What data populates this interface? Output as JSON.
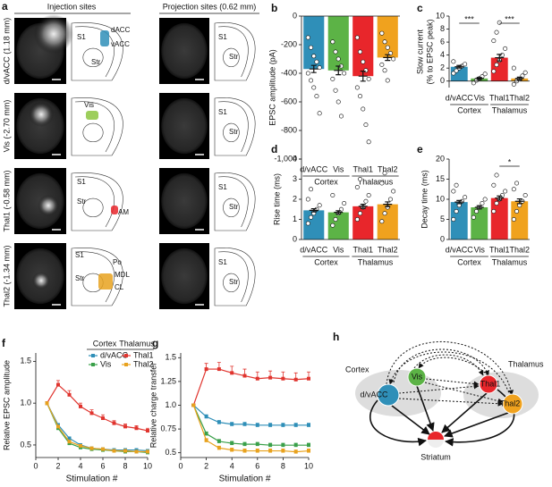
{
  "panel_a": {
    "label": "a",
    "injection_header": "Injection sites",
    "projection_header": "Projection sites (0.62 mm)",
    "rows": [
      {
        "label": "d/vACC (1.18 mm)",
        "atlas": [
          "S1",
          "dACC",
          "vACC",
          "Str"
        ],
        "projection_atlas": [
          "S1",
          "Str"
        ]
      },
      {
        "label": "Vis (-2.70 mm)",
        "atlas": [
          "Vis"
        ],
        "projection_atlas": [
          "S1",
          "Str"
        ]
      },
      {
        "label": "Thal1 (-0.58 mm)",
        "atlas": [
          "S1",
          "Str",
          "AM"
        ],
        "projection_atlas": [
          "S1",
          "Str"
        ]
      },
      {
        "label": "Thal2 (-1.34 mm)",
        "atlas": [
          "S1",
          "Po",
          "MDL",
          "CL",
          "Str"
        ],
        "projection_atlas": [
          "S1",
          "Str"
        ]
      }
    ]
  },
  "panel_h": {
    "label": "h",
    "regions": [
      "Cortex",
      "Thalamus"
    ],
    "nodes": [
      "d/vACC",
      "Vis",
      "Thal1",
      "Thal2",
      "Striatum"
    ]
  },
  "chart_data": [
    {
      "type": "bar",
      "panel": "b",
      "ylabel": "EPSC amplitude (pA)",
      "categories": [
        "d/vACC",
        "Vis",
        "Thal1",
        "Thal2"
      ],
      "colors": [
        "#2f8fb8",
        "#5cb346",
        "#e8262b",
        "#f0a21e"
      ],
      "values": [
        -370,
        -380,
        -420,
        -290
      ],
      "errors": [
        25,
        30,
        35,
        20
      ],
      "points": [
        [
          -150,
          -220,
          -280,
          -320,
          -360,
          -400,
          -450,
          -500,
          -560,
          -680
        ],
        [
          -180,
          -250,
          -300,
          -350,
          -400,
          -440,
          -520,
          -600,
          -700
        ],
        [
          -150,
          -250,
          -320,
          -380,
          -440,
          -500,
          -560,
          -650,
          -760,
          -880
        ],
        [
          -120,
          -180,
          -220,
          -260,
          -300,
          -340,
          -380,
          -450
        ]
      ],
      "groups": [
        {
          "label": "Cortex",
          "categories": [
            "d/vACC",
            "Vis"
          ]
        },
        {
          "label": "Thalamus",
          "categories": [
            "Thal1",
            "Thal2"
          ]
        }
      ],
      "ylim": [
        -1000,
        0
      ],
      "yticks": [
        0,
        -200,
        -400,
        -600,
        -800,
        {
          "value": -1000,
          "label": "-1,000"
        }
      ]
    },
    {
      "type": "bar",
      "panel": "c",
      "ylabel": [
        "Slow current",
        "(% to EPSC peak)"
      ],
      "categories": [
        "d/vACC",
        "Vis",
        "Thal1",
        "Thal2"
      ],
      "colors": [
        "#2f8fb8",
        "#5cb346",
        "#e8262b",
        "#f0a21e"
      ],
      "values": [
        2.2,
        0.4,
        3.6,
        0.4
      ],
      "errors": [
        0.2,
        0.15,
        0.5,
        0.2
      ],
      "points": [
        [
          1.2,
          1.6,
          2.0,
          2.3,
          2.6,
          3.0
        ],
        [
          -0.3,
          0.1,
          0.4,
          0.7,
          1.1
        ],
        [
          1.5,
          2.5,
          3.2,
          4.0,
          5.0,
          6.2,
          7.5,
          9.0
        ],
        [
          -0.5,
          0,
          0.3,
          0.8,
          1.3,
          2.0
        ]
      ],
      "groups": [
        {
          "label": "Cortex",
          "categories": [
            "d/vACC",
            "Vis"
          ]
        },
        {
          "label": "Thalamus",
          "categories": [
            "Thal1",
            "Thal2"
          ]
        }
      ],
      "significance": [
        {
          "label": "***",
          "categories": [
            "d/vACC",
            "Vis"
          ]
        },
        {
          "label": "***",
          "categories": [
            "Thal1",
            "Thal2"
          ]
        }
      ],
      "ylim": [
        -1,
        10
      ],
      "yticks": [
        0,
        2,
        4,
        6,
        8,
        10
      ]
    },
    {
      "type": "bar",
      "panel": "d",
      "ylabel": "Rise time (ms)",
      "categories": [
        "d/vACC",
        "Vis",
        "Thal1",
        "Thal2"
      ],
      "colors": [
        "#2f8fb8",
        "#5cb346",
        "#e8262b",
        "#f0a21e"
      ],
      "values": [
        1.45,
        1.35,
        1.65,
        1.75
      ],
      "errors": [
        0.08,
        0.08,
        0.1,
        0.12
      ],
      "points": [
        [
          0.8,
          1.1,
          1.3,
          1.5,
          1.7,
          2.0,
          2.5
        ],
        [
          0.7,
          1.0,
          1.3,
          1.5,
          1.8,
          2.2
        ],
        [
          1.0,
          1.3,
          1.6,
          1.9,
          2.2,
          2.6,
          3.0
        ],
        [
          0.9,
          1.3,
          1.6,
          2.0,
          2.4,
          2.8,
          3.3
        ]
      ],
      "groups": [
        {
          "label": "Cortex",
          "categories": [
            "d/vACC",
            "Vis"
          ]
        },
        {
          "label": "Thalamus",
          "categories": [
            "Thal1",
            "Thal2"
          ]
        }
      ],
      "ylim": [
        0,
        4
      ],
      "yticks": [
        0,
        1,
        2,
        3,
        4
      ]
    },
    {
      "type": "bar",
      "panel": "e",
      "ylabel": "Decay time (ms)",
      "categories": [
        "d/vACC",
        "Vis",
        "Thal1",
        "Thal2"
      ],
      "colors": [
        "#2f8fb8",
        "#5cb346",
        "#e8262b",
        "#f0a21e"
      ],
      "values": [
        9.3,
        8.0,
        10.3,
        9.5
      ],
      "errors": [
        0.4,
        0.4,
        0.5,
        0.6
      ],
      "points": [
        [
          5,
          7,
          8.5,
          9.5,
          10.5,
          12,
          13.5
        ],
        [
          5.5,
          7,
          8,
          9,
          10
        ],
        [
          7,
          9,
          10,
          11,
          12,
          13.5,
          16
        ],
        [
          5,
          7,
          8.5,
          9.5,
          11,
          12.5,
          14
        ]
      ],
      "groups": [
        {
          "label": "Cortex",
          "categories": [
            "d/vACC",
            "Vis"
          ]
        },
        {
          "label": "Thalamus",
          "categories": [
            "Thal1",
            "Thal2"
          ]
        }
      ],
      "significance": [
        {
          "label": "*",
          "categories": [
            "Thal1",
            "Thal2"
          ]
        }
      ],
      "ylim": [
        0,
        20
      ],
      "yticks": [
        0,
        5,
        10,
        15,
        20
      ]
    },
    {
      "type": "line",
      "panel": "f",
      "ylabel": "Relative EPSC amplitude",
      "xlabel": "Stimulation #",
      "x": [
        1,
        2,
        3,
        4,
        5,
        6,
        7,
        8,
        9,
        10
      ],
      "legend_titles": [
        "Cortex",
        "Thalamus"
      ],
      "series": [
        {
          "name": "d/vACC",
          "color": "#2f8fb8",
          "values": [
            1.0,
            0.74,
            0.58,
            0.5,
            0.46,
            0.45,
            0.44,
            0.44,
            0.44,
            0.43
          ],
          "errors": [
            0,
            0.015,
            0.015,
            0.015,
            0.015,
            0.015,
            0.015,
            0.015,
            0.015,
            0.015
          ]
        },
        {
          "name": "Vis",
          "color": "#3aa04a",
          "values": [
            1.0,
            0.7,
            0.52,
            0.47,
            0.45,
            0.44,
            0.43,
            0.42,
            0.42,
            0.41
          ],
          "errors": [
            0,
            0.015,
            0.015,
            0.015,
            0.015,
            0.015,
            0.015,
            0.015,
            0.015,
            0.015
          ]
        },
        {
          "name": "Thal1",
          "color": "#e0342e",
          "values": [
            1.0,
            1.22,
            1.1,
            0.96,
            0.88,
            0.82,
            0.76,
            0.72,
            0.7,
            0.67
          ],
          "errors": [
            0,
            0.05,
            0.05,
            0.04,
            0.04,
            0.04,
            0.03,
            0.03,
            0.03,
            0.03
          ]
        },
        {
          "name": "Thal2",
          "color": "#e8a21e",
          "values": [
            1.0,
            0.72,
            0.54,
            0.49,
            0.46,
            0.45,
            0.43,
            0.43,
            0.42,
            0.42
          ],
          "errors": [
            0,
            0.015,
            0.015,
            0.015,
            0.015,
            0.015,
            0.015,
            0.015,
            0.015,
            0.015
          ]
        }
      ],
      "xlim": [
        0,
        10
      ],
      "xticks": [
        0,
        2,
        4,
        6,
        8,
        10
      ],
      "ylim": [
        0.35,
        1.6
      ],
      "yticks": [
        {
          "value": 0.5,
          "label": "0.5"
        },
        {
          "value": 1,
          "label": "1.0"
        },
        {
          "value": 1.5,
          "label": "1.5"
        }
      ]
    },
    {
      "type": "line",
      "panel": "g",
      "ylabel": "Relative charge transfer",
      "xlabel": "Stimulation #",
      "x": [
        1,
        2,
        3,
        4,
        5,
        6,
        7,
        8,
        9,
        10
      ],
      "series": [
        {
          "color": "#2f8fb8",
          "values": [
            1.0,
            0.88,
            0.82,
            0.8,
            0.8,
            0.79,
            0.79,
            0.79,
            0.79,
            0.79
          ],
          "errors": [
            0,
            0.02,
            0.02,
            0.02,
            0.02,
            0.02,
            0.02,
            0.02,
            0.02,
            0.02
          ]
        },
        {
          "color": "#3aa04a",
          "values": [
            1.0,
            0.7,
            0.62,
            0.6,
            0.59,
            0.59,
            0.58,
            0.58,
            0.58,
            0.58
          ],
          "errors": [
            0,
            0.02,
            0.02,
            0.02,
            0.02,
            0.02,
            0.02,
            0.02,
            0.02,
            0.02
          ]
        },
        {
          "color": "#e0342e",
          "values": [
            1.0,
            1.38,
            1.38,
            1.34,
            1.31,
            1.28,
            1.29,
            1.28,
            1.27,
            1.28
          ],
          "errors": [
            0,
            0.06,
            0.07,
            0.07,
            0.07,
            0.07,
            0.07,
            0.07,
            0.07,
            0.07
          ]
        },
        {
          "color": "#e8a21e",
          "values": [
            1.0,
            0.63,
            0.55,
            0.53,
            0.52,
            0.52,
            0.52,
            0.52,
            0.51,
            0.52
          ],
          "errors": [
            0,
            0.02,
            0.02,
            0.02,
            0.02,
            0.02,
            0.02,
            0.02,
            0.02,
            0.02
          ]
        }
      ],
      "xlim": [
        0,
        10
      ],
      "xticks": [
        0,
        2,
        4,
        6,
        8,
        10
      ],
      "ylim": [
        0.45,
        1.55
      ],
      "yticks": [
        0.5,
        0.75,
        {
          "value": 1,
          "label": "1.0"
        },
        1.25,
        1.5
      ]
    }
  ]
}
